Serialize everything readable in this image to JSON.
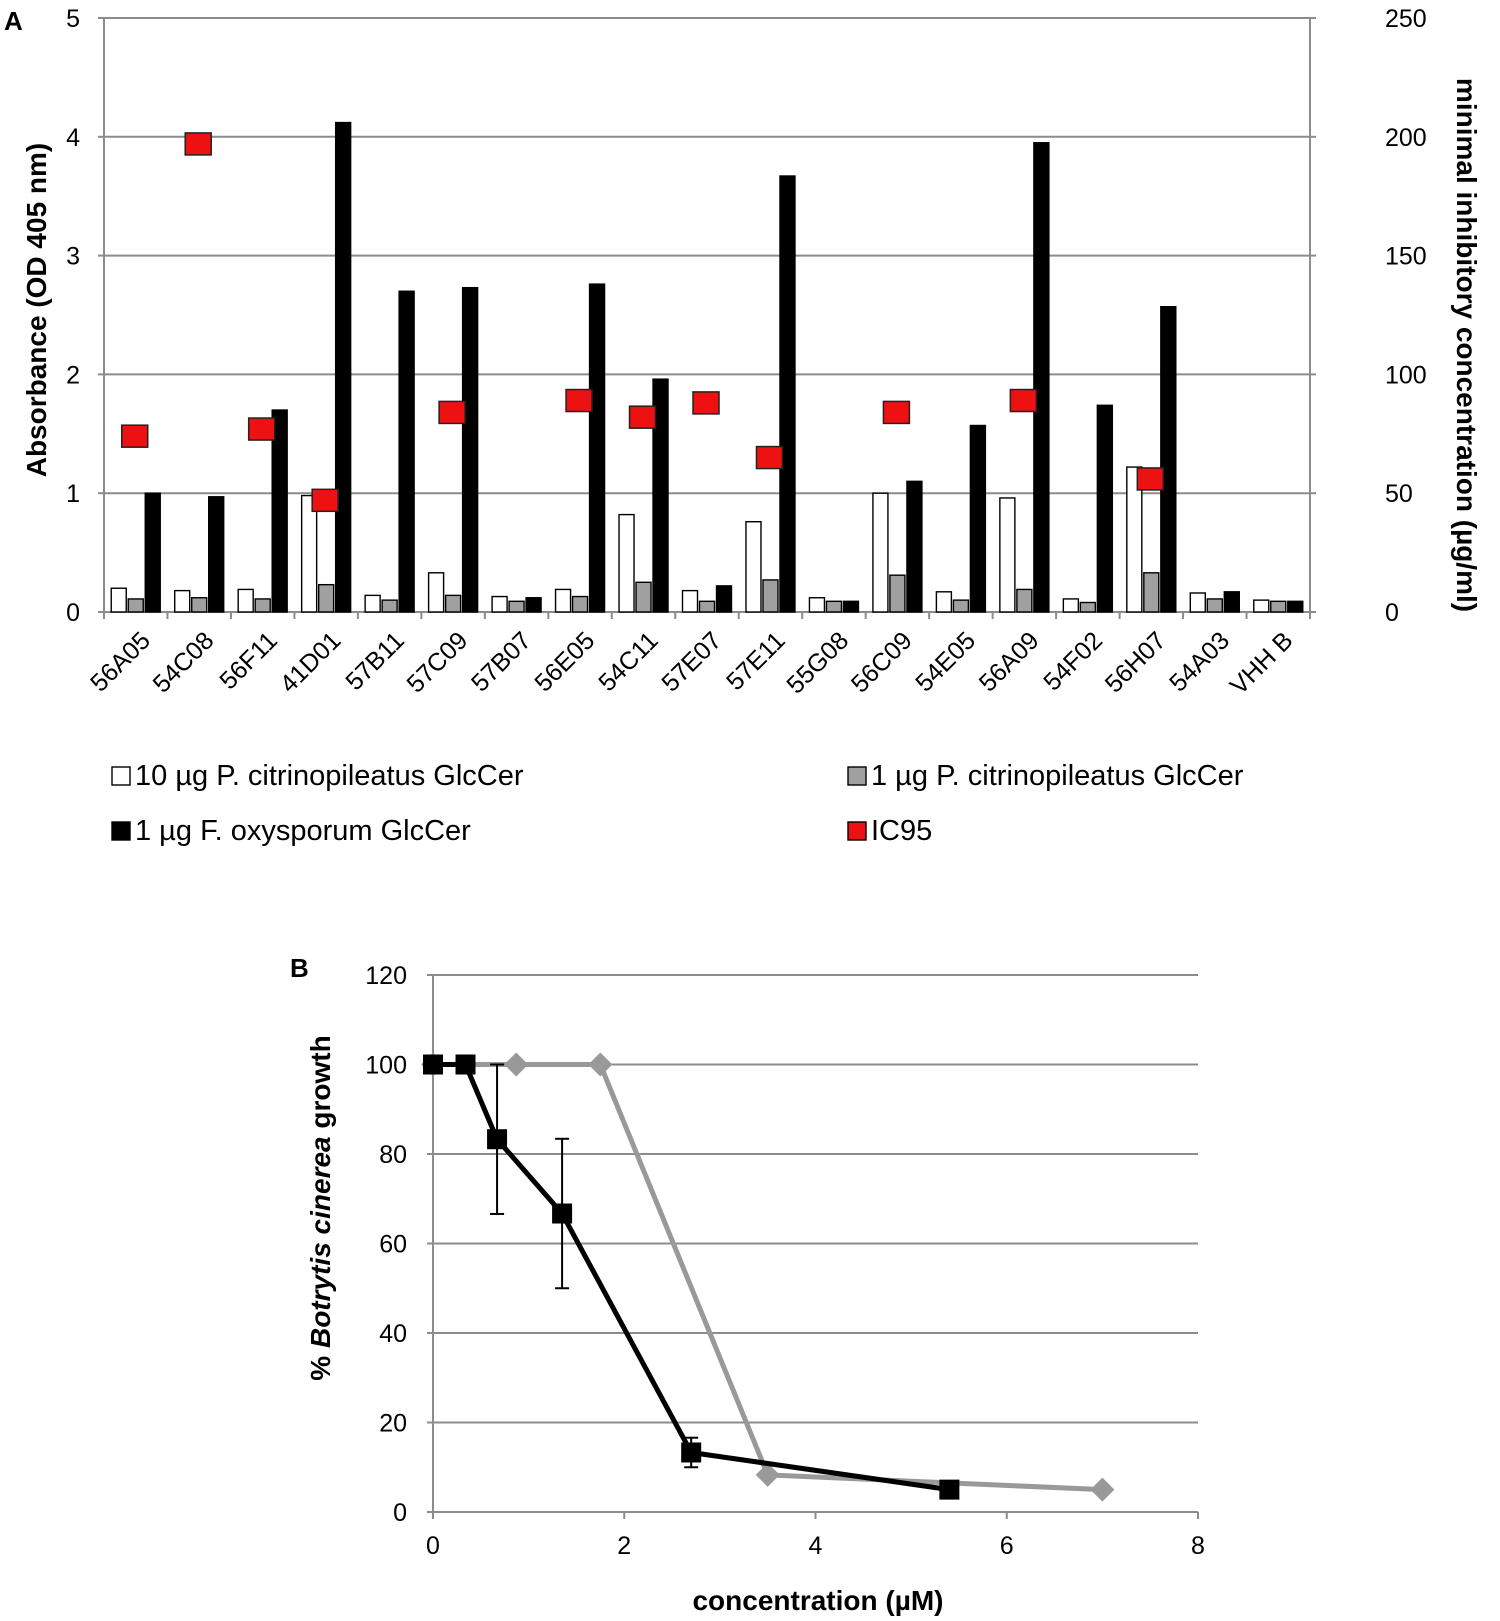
{
  "chart_data": [
    {
      "panel": "A",
      "type": "bar",
      "ylabel": "Absorbance (OD 405 nm)",
      "y2label": "minimal inhibitory concentration (µg/ml)",
      "ylim": [
        0,
        5
      ],
      "yticks": [
        0,
        1,
        2,
        3,
        4,
        5
      ],
      "y2lim": [
        0,
        250
      ],
      "y2ticks": [
        0,
        50,
        100,
        150,
        200,
        250
      ],
      "grid": true,
      "legend_position": "bottom",
      "categories": [
        "56A05",
        "54C08",
        "56F11",
        "41D01",
        "57B11",
        "57C09",
        "57B07",
        "56E05",
        "54C11",
        "57E07",
        "57E11",
        "55G08",
        "56C09",
        "54E05",
        "56A09",
        "54F02",
        "56H07",
        "54A03",
        "VHH B"
      ],
      "series": [
        {
          "name": "10 µg P. citrinopileatus GlcCer",
          "color": "#ffffff",
          "values": [
            0.2,
            0.18,
            0.19,
            0.98,
            0.14,
            0.33,
            0.13,
            0.19,
            0.82,
            0.18,
            0.76,
            0.12,
            1.0,
            0.17,
            0.96,
            0.11,
            1.22,
            0.16,
            0.1
          ]
        },
        {
          "name": "1 µg P. citrinopileatus GlcCer",
          "color": "#a0a0a0",
          "values": [
            0.11,
            0.12,
            0.11,
            0.23,
            0.1,
            0.14,
            0.09,
            0.13,
            0.25,
            0.09,
            0.27,
            0.09,
            0.31,
            0.1,
            0.19,
            0.08,
            0.33,
            0.11,
            0.09
          ]
        },
        {
          "name": "1 µg F. oxysporum GlcCer",
          "color": "#000000",
          "values": [
            1.0,
            0.97,
            1.7,
            4.12,
            2.7,
            2.73,
            0.12,
            2.76,
            1.96,
            0.22,
            3.67,
            0.09,
            1.1,
            1.57,
            3.95,
            1.74,
            2.57,
            0.17,
            0.09
          ]
        },
        {
          "name": "IC95",
          "color": "#ee1111",
          "axis": "right",
          "marker": "square",
          "values": [
            74,
            197,
            77,
            47,
            null,
            84,
            null,
            89,
            82,
            88,
            65,
            null,
            84,
            null,
            89,
            null,
            56,
            null,
            null
          ]
        }
      ]
    },
    {
      "panel": "B",
      "type": "line",
      "xlabel": "concentration (µM)",
      "ylabel_prefix": "% ",
      "ylabel_italic": "Botrytis cinerea",
      "ylabel_suffix": " growth",
      "xlim": [
        0,
        8
      ],
      "xticks": [
        0,
        2,
        4,
        6,
        8
      ],
      "ylim": [
        0,
        120
      ],
      "yticks": [
        0,
        20,
        40,
        60,
        80,
        100,
        120
      ],
      "grid": true,
      "series": [
        {
          "name": "grey",
          "color": "#999999",
          "marker": "diamond",
          "x": [
            0,
            0.87,
            1.75,
            3.5,
            7.0
          ],
          "y": [
            100,
            100,
            100,
            8.3,
            5.0
          ]
        },
        {
          "name": "black",
          "color": "#000000",
          "marker": "square",
          "x": [
            0,
            0.34,
            0.67,
            1.35,
            2.7,
            5.4
          ],
          "y": [
            100,
            100,
            83.3,
            66.7,
            13.3,
            5.0
          ],
          "err": [
            0,
            0,
            16.7,
            16.7,
            3.3,
            0
          ]
        }
      ]
    }
  ]
}
